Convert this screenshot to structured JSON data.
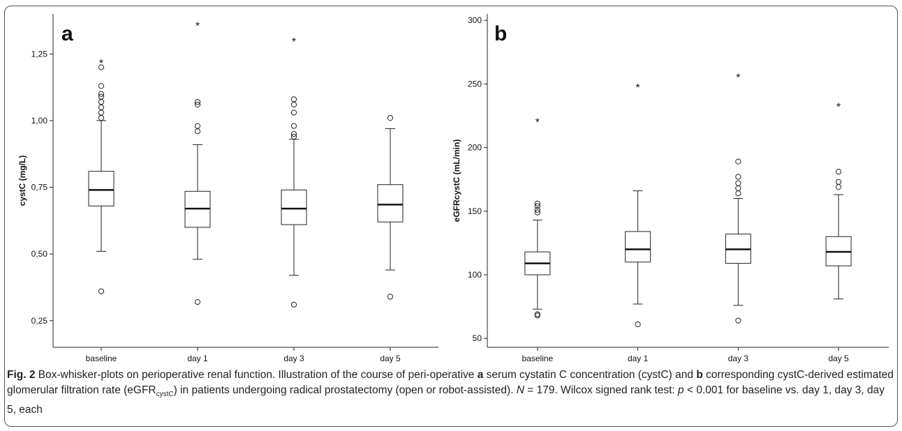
{
  "chart_data": [
    {
      "type": "box",
      "panel_label": "a",
      "ylabel": "cystC (mg/L)",
      "ylim": [
        0.15,
        1.4
      ],
      "yticks": [
        0.25,
        0.5,
        0.75,
        1.0,
        1.25
      ],
      "ytick_labels": [
        "0,25",
        "0,50",
        "0,75",
        "1,00",
        "1,25"
      ],
      "categories": [
        "baseline",
        "day 1",
        "day 3",
        "day 5"
      ],
      "boxes": [
        {
          "whisker_low": 0.51,
          "q1": 0.68,
          "median": 0.74,
          "q3": 0.81,
          "whisker_high": 1.0,
          "outliers": [
            0.36,
            1.01,
            1.03,
            1.05,
            1.07,
            1.09,
            1.1,
            1.13,
            1.2
          ],
          "extremes": [
            1.22
          ]
        },
        {
          "whisker_low": 0.48,
          "q1": 0.6,
          "median": 0.67,
          "q3": 0.735,
          "whisker_high": 0.91,
          "outliers": [
            0.32,
            0.96,
            0.98,
            1.06,
            1.07
          ],
          "extremes": [
            1.36
          ]
        },
        {
          "whisker_low": 0.42,
          "q1": 0.61,
          "median": 0.67,
          "q3": 0.74,
          "whisker_high": 0.93,
          "outliers": [
            0.31,
            0.94,
            0.95,
            0.98,
            1.03,
            1.06,
            1.08
          ],
          "extremes": [
            1.3
          ]
        },
        {
          "whisker_low": 0.44,
          "q1": 0.62,
          "median": 0.685,
          "q3": 0.76,
          "whisker_high": 0.97,
          "outliers": [
            0.34,
            1.01
          ],
          "extremes": []
        }
      ]
    },
    {
      "type": "box",
      "panel_label": "b",
      "ylabel": "eGFRcystC (mL/min)",
      "ylim": [
        43,
        305
      ],
      "yticks": [
        50,
        100,
        150,
        200,
        250,
        300
      ],
      "ytick_labels": [
        "50",
        "100",
        "150",
        "200",
        "250",
        "300"
      ],
      "categories": [
        "baseline",
        "day 1",
        "day 3",
        "day 5"
      ],
      "boxes": [
        {
          "whisker_low": 73,
          "q1": 100,
          "median": 109,
          "q3": 118,
          "whisker_high": 143,
          "outliers": [
            68,
            69,
            149,
            151,
            154,
            156
          ],
          "extremes": [
            221
          ]
        },
        {
          "whisker_low": 77,
          "q1": 110,
          "median": 120,
          "q3": 134,
          "whisker_high": 166,
          "outliers": [
            61
          ],
          "extremes": [
            248
          ]
        },
        {
          "whisker_low": 76,
          "q1": 109,
          "median": 120,
          "q3": 132,
          "whisker_high": 160,
          "outliers": [
            64,
            164,
            168,
            172,
            177,
            189
          ],
          "extremes": [
            256
          ]
        },
        {
          "whisker_low": 81,
          "q1": 107,
          "median": 118,
          "q3": 130,
          "whisker_high": 163,
          "outliers": [
            169,
            173,
            181
          ],
          "extremes": [
            233
          ]
        }
      ]
    }
  ],
  "caption": {
    "fig": "Fig. 2",
    "title": " Box-whisker-plots on perioperative renal function. Illustration of the course of peri-operative ",
    "a_label": "a",
    "a_text": " serum cystatin C concentration (cystC) and ",
    "b_label": "b",
    "b_text": " corresponding cystC-derived estimated glomerular filtration rate (eGFR",
    "sub": "cystC",
    "rest": ") in patients undergoing radical prostatectomy (open or robot-assisted). ",
    "n_label": "N",
    "n_text": " = 179. Wilcox signed rank test: ",
    "p_label": "p",
    "p_text": " < 0.001 for baseline vs. day 1, day 3, day 5, each"
  }
}
